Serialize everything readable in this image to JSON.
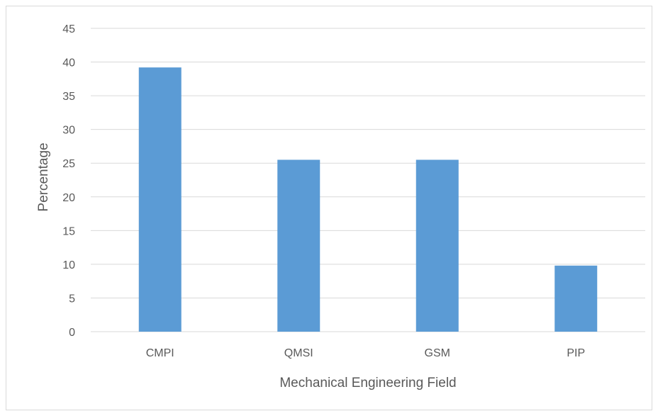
{
  "chart_data": {
    "type": "bar",
    "title": "",
    "xlabel": "Mechanical Engineering Field",
    "ylabel": "Percentage",
    "categories": [
      "CMPI",
      "QMSI",
      "GSM",
      "PIP"
    ],
    "values": [
      39.2,
      25.5,
      25.5,
      9.8
    ],
    "ylim": [
      0,
      45
    ],
    "yticks": [
      "0",
      "5",
      "10",
      "15",
      "20",
      "25",
      "30",
      "35",
      "40",
      "45"
    ],
    "grid": true,
    "legend": "none",
    "bar_color": "#5b9bd5",
    "gridline_color": "#d9d9d9"
  }
}
